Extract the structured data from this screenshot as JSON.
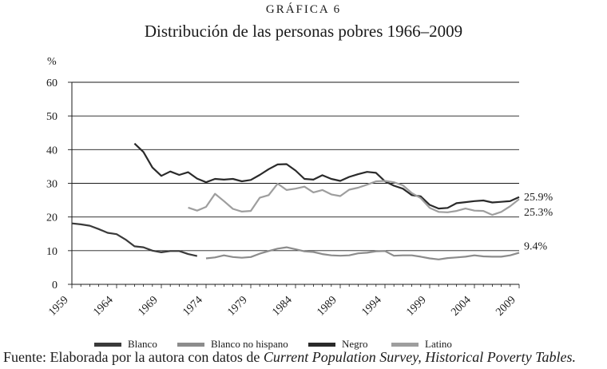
{
  "header": {
    "label": "GRÁFICA 6",
    "title": "Distribución de las personas pobres 1966–2009"
  },
  "source": {
    "prefix": "Fuente: Elaborada por la autora con datos de ",
    "emphasis": "Current Population Survey, Historical Poverty Tables."
  },
  "chart_data": {
    "type": "line",
    "title": "Distribución de las personas pobres 1966–2009",
    "ylabel": "%",
    "xlabel": "",
    "xlim": [
      1959,
      2009
    ],
    "ylim": [
      0,
      60
    ],
    "yticks": [
      0,
      10,
      20,
      30,
      40,
      50,
      60
    ],
    "xticks": [
      1959,
      1964,
      1969,
      1974,
      1979,
      1984,
      1989,
      1994,
      1999,
      2004,
      2009
    ],
    "grid": "horizontal",
    "legend_position": "bottom",
    "series": [
      {
        "name": "Blanco",
        "color": "#3a3a3a",
        "x": [
          1959,
          1960,
          1961,
          1962,
          1963,
          1964,
          1965,
          1966,
          1967,
          1968,
          1969,
          1970,
          1971,
          1972,
          1973
        ],
        "y": [
          18.1,
          17.8,
          17.4,
          16.4,
          15.3,
          14.9,
          13.3,
          11.3,
          11.0,
          10.0,
          9.5,
          9.9,
          9.9,
          9.0,
          8.4
        ]
      },
      {
        "name": "Blanco no hispano",
        "color": "#8c8c8c",
        "x": [
          1974,
          1975,
          1976,
          1977,
          1978,
          1979,
          1980,
          1981,
          1982,
          1983,
          1984,
          1985,
          1986,
          1987,
          1988,
          1989,
          1990,
          1991,
          1992,
          1993,
          1994,
          1995,
          1996,
          1997,
          1998,
          1999,
          2000,
          2001,
          2002,
          2003,
          2004,
          2005,
          2006,
          2007,
          2008,
          2009
        ],
        "y": [
          7.7,
          8.0,
          8.6,
          8.1,
          7.9,
          8.1,
          9.1,
          9.9,
          10.6,
          11.0,
          10.4,
          9.8,
          9.6,
          9.0,
          8.6,
          8.5,
          8.6,
          9.2,
          9.4,
          9.8,
          9.9,
          8.5,
          8.6,
          8.6,
          8.2,
          7.7,
          7.4,
          7.8,
          8.0,
          8.2,
          8.6,
          8.3,
          8.2,
          8.2,
          8.6,
          9.4
        ]
      },
      {
        "name": "Negro",
        "color": "#2a2a2a",
        "x": [
          1966,
          1967,
          1968,
          1969,
          1970,
          1971,
          1972,
          1973,
          1974,
          1975,
          1976,
          1977,
          1978,
          1979,
          1980,
          1981,
          1982,
          1983,
          1984,
          1985,
          1986,
          1987,
          1988,
          1989,
          1990,
          1991,
          1992,
          1993,
          1994,
          1995,
          1996,
          1997,
          1998,
          1999,
          2000,
          2001,
          2002,
          2003,
          2004,
          2005,
          2006,
          2007,
          2008,
          2009
        ],
        "y": [
          41.8,
          39.3,
          34.7,
          32.2,
          33.5,
          32.5,
          33.3,
          31.4,
          30.3,
          31.3,
          31.1,
          31.3,
          30.6,
          31.0,
          32.5,
          34.2,
          35.6,
          35.7,
          33.8,
          31.3,
          31.1,
          32.4,
          31.3,
          30.7,
          31.9,
          32.7,
          33.4,
          33.1,
          30.6,
          29.3,
          28.4,
          26.5,
          26.1,
          23.6,
          22.5,
          22.7,
          24.1,
          24.4,
          24.7,
          24.9,
          24.3,
          24.5,
          24.7,
          25.9
        ]
      },
      {
        "name": "Latino",
        "color": "#9e9e9e",
        "x": [
          1972,
          1973,
          1974,
          1975,
          1976,
          1977,
          1978,
          1979,
          1980,
          1981,
          1982,
          1983,
          1984,
          1985,
          1986,
          1987,
          1988,
          1989,
          1990,
          1991,
          1992,
          1993,
          1994,
          1995,
          1996,
          1997,
          1998,
          1999,
          2000,
          2001,
          2002,
          2003,
          2004,
          2005,
          2006,
          2007,
          2008,
          2009
        ],
        "y": [
          22.8,
          21.9,
          23.0,
          26.9,
          24.7,
          22.4,
          21.6,
          21.8,
          25.7,
          26.5,
          29.9,
          28.0,
          28.4,
          29.0,
          27.3,
          28.0,
          26.7,
          26.2,
          28.1,
          28.7,
          29.6,
          30.6,
          30.7,
          30.3,
          29.4,
          27.1,
          25.6,
          22.7,
          21.5,
          21.4,
          21.8,
          22.5,
          21.9,
          21.8,
          20.6,
          21.5,
          23.2,
          25.3
        ]
      }
    ],
    "annotations": [
      "25.9%",
      "25.3%",
      "9.4%"
    ]
  }
}
